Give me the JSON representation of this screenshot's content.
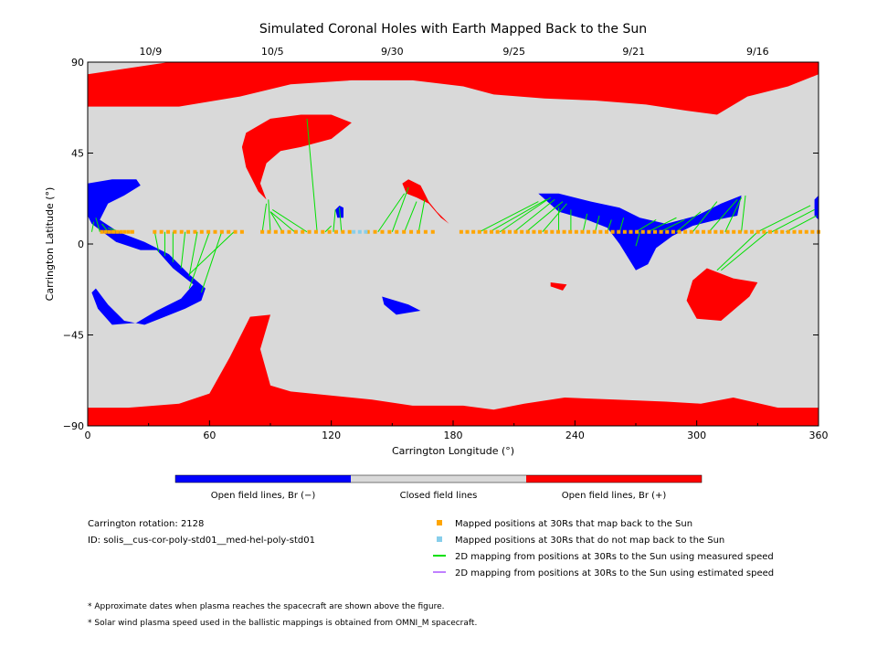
{
  "chart_data": {
    "type": "map",
    "title": "Simulated Coronal Holes with Earth Mapped Back to the Sun",
    "xlabel": "Carrington Longitude (°)",
    "ylabel": "Carrington Latitude (°)",
    "xlim": [
      0,
      360
    ],
    "ylim": [
      -90,
      90
    ],
    "x_ticks": [
      0,
      60,
      120,
      180,
      240,
      300,
      360
    ],
    "y_ticks": [
      -90,
      -45,
      0,
      45,
      90
    ],
    "top_date_ticks": [
      {
        "label": "10/9",
        "lon": 31
      },
      {
        "label": "10/5",
        "lon": 91
      },
      {
        "label": "9/30",
        "lon": 150
      },
      {
        "label": "9/25",
        "lon": 210
      },
      {
        "label": "9/21",
        "lon": 269
      },
      {
        "label": "9/16",
        "lon": 330
      }
    ],
    "colorbar": {
      "segments": [
        {
          "label": "Open field lines, Br (−)",
          "color": "#0000ff"
        },
        {
          "label": "Closed field lines",
          "color": "#d9d9d9"
        },
        {
          "label": "Open field lines, Br (+)",
          "color": "#ff0000"
        }
      ]
    },
    "colors": {
      "background": "#d9d9d9",
      "negative": "#0000ff",
      "positive": "#ff0000",
      "mapped": "#ffa500",
      "unmapped": "#87ceeb",
      "measured": "#00e000",
      "estimated": "#c080ff"
    },
    "regions": {
      "positive": [
        [
          [
            0,
            84
          ],
          [
            40,
            90
          ],
          [
            130,
            90
          ],
          [
            200,
            90
          ],
          [
            270,
            90
          ],
          [
            320,
            90
          ],
          [
            360,
            90
          ],
          [
            360,
            84
          ],
          [
            345,
            78
          ],
          [
            325,
            73
          ],
          [
            310,
            64
          ],
          [
            295,
            66
          ],
          [
            275,
            69
          ],
          [
            250,
            71
          ],
          [
            225,
            72
          ],
          [
            200,
            74
          ],
          [
            185,
            78
          ],
          [
            160,
            81
          ],
          [
            130,
            81
          ],
          [
            100,
            79
          ],
          [
            75,
            73
          ],
          [
            45,
            68
          ],
          [
            15,
            68
          ],
          [
            0,
            68
          ]
        ],
        [
          [
            0,
            -90
          ],
          [
            360,
            -90
          ],
          [
            360,
            -81
          ],
          [
            340,
            -81
          ],
          [
            318,
            -76
          ],
          [
            302,
            -79
          ],
          [
            285,
            -78
          ],
          [
            260,
            -77
          ],
          [
            235,
            -76
          ],
          [
            215,
            -79
          ],
          [
            200,
            -82
          ],
          [
            185,
            -80
          ],
          [
            160,
            -80
          ],
          [
            140,
            -77
          ],
          [
            100,
            -73
          ],
          [
            90,
            -70
          ],
          [
            85,
            -52
          ],
          [
            90,
            -35
          ],
          [
            80,
            -36
          ],
          [
            70,
            -56
          ],
          [
            60,
            -74
          ],
          [
            45,
            -79
          ],
          [
            20,
            -81
          ],
          [
            0,
            -81
          ]
        ],
        [
          [
            78,
            55
          ],
          [
            90,
            62
          ],
          [
            105,
            64
          ],
          [
            120,
            64
          ],
          [
            130,
            60
          ],
          [
            120,
            52
          ],
          [
            105,
            48
          ],
          [
            95,
            46
          ],
          [
            88,
            40
          ],
          [
            85,
            30
          ],
          [
            88,
            22
          ],
          [
            84,
            26
          ],
          [
            78,
            38
          ],
          [
            76,
            48
          ]
        ],
        [
          [
            158,
            32
          ],
          [
            164,
            29
          ],
          [
            166,
            25
          ],
          [
            168,
            21
          ],
          [
            172,
            16
          ],
          [
            178,
            10
          ],
          [
            174,
            13
          ],
          [
            168,
            20
          ],
          [
            162,
            23
          ],
          [
            157,
            25
          ],
          [
            155,
            30
          ]
        ],
        [
          [
            305,
            -12
          ],
          [
            318,
            -17
          ],
          [
            330,
            -19
          ],
          [
            326,
            -26
          ],
          [
            312,
            -38
          ],
          [
            300,
            -37
          ],
          [
            295,
            -28
          ],
          [
            298,
            -18
          ]
        ],
        [
          [
            228,
            -19
          ],
          [
            236,
            -20
          ],
          [
            234,
            -23
          ],
          [
            228,
            -21
          ]
        ]
      ],
      "negative": [
        [
          [
            0,
            30
          ],
          [
            12,
            32
          ],
          [
            24,
            32
          ],
          [
            26,
            29
          ],
          [
            18,
            24
          ],
          [
            10,
            20
          ],
          [
            6,
            12
          ],
          [
            15,
            6
          ],
          [
            28,
            1
          ],
          [
            40,
            -5
          ],
          [
            50,
            -15
          ],
          [
            58,
            -22
          ],
          [
            56,
            -28
          ],
          [
            48,
            -32
          ],
          [
            38,
            -36
          ],
          [
            28,
            -40
          ],
          [
            18,
            -38
          ],
          [
            10,
            -30
          ],
          [
            4,
            -22
          ],
          [
            2,
            -24
          ],
          [
            5,
            -32
          ],
          [
            12,
            -40
          ],
          [
            24,
            -39
          ],
          [
            34,
            -33
          ],
          [
            46,
            -27
          ],
          [
            52,
            -20
          ],
          [
            42,
            -12
          ],
          [
            34,
            -3
          ],
          [
            26,
            -3
          ],
          [
            14,
            1
          ],
          [
            2,
            10
          ],
          [
            0,
            14
          ]
        ],
        [
          [
            222,
            25
          ],
          [
            232,
            25
          ],
          [
            248,
            21
          ],
          [
            262,
            18
          ],
          [
            272,
            13
          ],
          [
            285,
            10
          ],
          [
            300,
            14
          ],
          [
            312,
            20
          ],
          [
            322,
            24
          ],
          [
            320,
            14
          ],
          [
            310,
            12
          ],
          [
            298,
            9
          ],
          [
            288,
            4
          ],
          [
            280,
            -2
          ],
          [
            276,
            -10
          ],
          [
            270,
            -13
          ],
          [
            262,
            0
          ],
          [
            256,
            8
          ],
          [
            246,
            12
          ],
          [
            232,
            16
          ]
        ],
        [
          [
            145,
            -26
          ],
          [
            158,
            -30
          ],
          [
            164,
            -33
          ],
          [
            152,
            -35
          ],
          [
            146,
            -30
          ]
        ],
        [
          [
            122,
            17
          ],
          [
            124,
            19
          ],
          [
            126,
            18
          ],
          [
            126,
            13
          ],
          [
            123,
            13
          ]
        ],
        [
          [
            358,
            22
          ],
          [
            360,
            24
          ],
          [
            360,
            12
          ],
          [
            358,
            14
          ]
        ]
      ]
    },
    "mapped_points": [
      {
        "lon_start": 7,
        "lon_end": 22,
        "lat": 6,
        "count": 9
      },
      {
        "lon_start": 33,
        "lon_end": 76,
        "lat": 6,
        "count": 14
      },
      {
        "lon_start": 86,
        "lon_end": 129,
        "lat": 6,
        "count": 14
      },
      {
        "lon_start": 138,
        "lon_end": 170,
        "lat": 6,
        "count": 10
      },
      {
        "lon_start": 184,
        "lon_end": 360,
        "lat": 6,
        "count": 60
      }
    ],
    "unmapped_points": [
      {
        "lon_start": 131,
        "lon_end": 137,
        "lat": 6,
        "count": 3
      }
    ],
    "mapping_lines_measured": [
      [
        [
          2,
          6
        ],
        [
          3,
          11
        ]
      ],
      [
        [
          6,
          6
        ],
        [
          4,
          13
        ]
      ],
      [
        [
          10,
          6
        ],
        [
          7,
          10
        ]
      ],
      [
        [
          16,
          6
        ],
        [
          10,
          8
        ]
      ],
      [
        [
          33,
          6
        ],
        [
          35,
          -4
        ]
      ],
      [
        [
          38,
          6
        ],
        [
          38,
          -6
        ]
      ],
      [
        [
          42,
          6
        ],
        [
          42,
          -9
        ]
      ],
      [
        [
          48,
          6
        ],
        [
          46,
          -12
        ]
      ],
      [
        [
          54,
          6
        ],
        [
          50,
          -16
        ]
      ],
      [
        [
          60,
          6
        ],
        [
          50,
          -22
        ]
      ],
      [
        [
          66,
          6
        ],
        [
          56,
          -24
        ]
      ],
      [
        [
          72,
          6
        ],
        [
          50,
          -15
        ]
      ],
      [
        [
          86,
          6
        ],
        [
          88,
          20
        ]
      ],
      [
        [
          90,
          6
        ],
        [
          89,
          22
        ]
      ],
      [
        [
          96,
          6
        ],
        [
          90,
          16
        ]
      ],
      [
        [
          102,
          6
        ],
        [
          90,
          16
        ]
      ],
      [
        [
          108,
          6
        ],
        [
          91,
          17
        ]
      ],
      [
        [
          113,
          6
        ],
        [
          108,
          62
        ]
      ],
      [
        [
          117,
          6
        ],
        [
          120,
          9
        ]
      ],
      [
        [
          121,
          6
        ],
        [
          122,
          17
        ]
      ],
      [
        [
          125,
          6
        ],
        [
          124,
          18
        ]
      ],
      [
        [
          143,
          6
        ],
        [
          156,
          25
        ]
      ],
      [
        [
          150,
          6
        ],
        [
          158,
          28
        ]
      ],
      [
        [
          156,
          6
        ],
        [
          162,
          21
        ]
      ],
      [
        [
          163,
          6
        ],
        [
          166,
          22
        ]
      ],
      [
        [
          193,
          6
        ],
        [
          222,
          21
        ]
      ],
      [
        [
          198,
          6
        ],
        [
          226,
          22
        ]
      ],
      [
        [
          203,
          6
        ],
        [
          228,
          23
        ]
      ],
      [
        [
          210,
          6
        ],
        [
          230,
          22
        ]
      ],
      [
        [
          216,
          6
        ],
        [
          234,
          21
        ]
      ],
      [
        [
          224,
          6
        ],
        [
          236,
          20
        ]
      ],
      [
        [
          232,
          6
        ],
        [
          232,
          18
        ]
      ],
      [
        [
          238,
          6
        ],
        [
          238,
          17
        ]
      ],
      [
        [
          244,
          6
        ],
        [
          246,
          15
        ]
      ],
      [
        [
          250,
          6
        ],
        [
          252,
          14
        ]
      ],
      [
        [
          256,
          6
        ],
        [
          258,
          12
        ]
      ],
      [
        [
          262,
          6
        ],
        [
          264,
          13
        ]
      ],
      [
        [
          270,
          6
        ],
        [
          280,
          12
        ]
      ],
      [
        [
          276,
          6
        ],
        [
          290,
          13
        ]
      ],
      [
        [
          282,
          6
        ],
        [
          294,
          12
        ]
      ],
      [
        [
          290,
          6
        ],
        [
          302,
          16
        ]
      ],
      [
        [
          298,
          6
        ],
        [
          310,
          21
        ]
      ],
      [
        [
          306,
          6
        ],
        [
          320,
          22
        ]
      ],
      [
        [
          314,
          6
        ],
        [
          322,
          23
        ]
      ],
      [
        [
          322,
          6
        ],
        [
          324,
          24
        ]
      ],
      [
        [
          330,
          6
        ],
        [
          356,
          19
        ]
      ],
      [
        [
          337,
          6
        ],
        [
          358,
          17
        ]
      ],
      [
        [
          344,
          6
        ],
        [
          359,
          14
        ]
      ],
      [
        [
          330,
          6
        ],
        [
          310,
          -13
        ]
      ],
      [
        [
          335,
          6
        ],
        [
          312,
          -13
        ]
      ],
      [
        [
          272,
          6
        ],
        [
          270,
          -1
        ]
      ]
    ],
    "mapping_lines_estimated": [],
    "legend": [
      {
        "kind": "square",
        "color": "#ffa500",
        "label": "Mapped positions at 30Rs that map back to the Sun"
      },
      {
        "kind": "square",
        "color": "#87ceeb",
        "label": "Mapped positions at 30Rs that do not map back to the Sun"
      },
      {
        "kind": "line",
        "color": "#00e000",
        "label": "2D mapping from positions at 30Rs to the Sun using measured speed"
      },
      {
        "kind": "line",
        "color": "#c080ff",
        "label": "2D mapping from positions at 30Rs to the Sun using estimated speed"
      }
    ],
    "info": {
      "rotation": "Carrington rotation: 2128",
      "id": "ID: solis__cus-cor-poly-std01__med-hel-poly-std01"
    },
    "footnotes": [
      "* Approximate dates when plasma reaches the spacecraft are shown above the figure.",
      "* Solar wind plasma speed used in the ballistic mappings is obtained from OMNI_M spacecraft."
    ]
  }
}
